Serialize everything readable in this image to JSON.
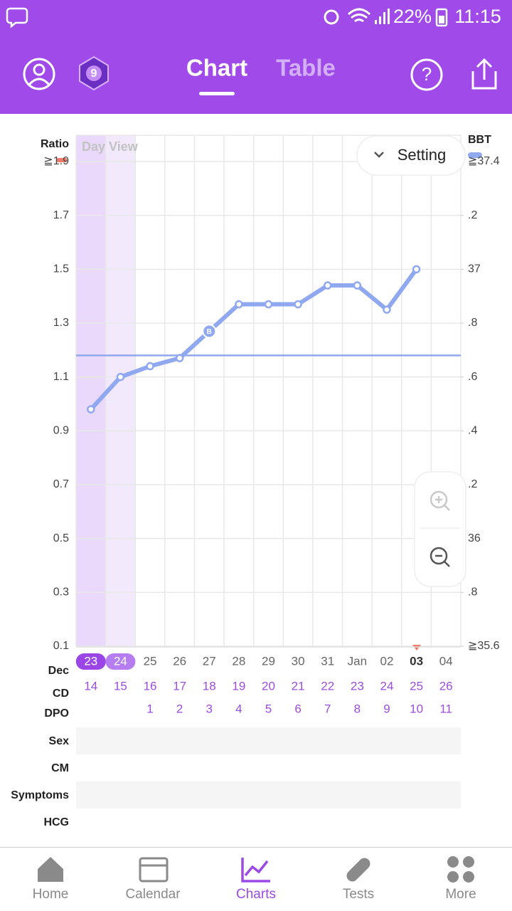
{
  "status_bar": {
    "battery": "22%",
    "time": "11:15"
  },
  "header": {
    "tabs": [
      "Chart",
      "Table"
    ]
  },
  "chart_data": {
    "type": "line",
    "y_label": "Ratio",
    "y2_label": "BBT",
    "view_label": "Day View",
    "setting_label": "Setting",
    "categories": [
      "23",
      "24",
      "25",
      "26",
      "27",
      "28",
      "29",
      "30",
      "31",
      "Jan",
      "02",
      "03",
      "04"
    ],
    "series": [
      {
        "name": "BBT",
        "color": "#8fa8f0",
        "axis": "y2",
        "values": [
          36.48,
          36.6,
          36.64,
          36.67,
          36.77,
          36.87,
          36.87,
          36.87,
          36.94,
          36.94,
          36.85,
          37.0,
          null
        ],
        "marker_labels": [
          null,
          null,
          null,
          null,
          "B",
          null,
          null,
          null,
          null,
          null,
          null,
          null,
          null
        ]
      }
    ],
    "coverline": 36.68,
    "ylim": [
      0.1,
      1.9
    ],
    "yticks": [
      {
        "value": 1.9,
        "label": "≧1.9"
      },
      1.7,
      1.5,
      1.3,
      1.1,
      0.9,
      0.7,
      0.5,
      0.3,
      0.1
    ],
    "y2lim": [
      35.6,
      37.4
    ],
    "y2ticks": [
      {
        "value": 37.4,
        "label": "≧37.4"
      },
      {
        "value": 37.2,
        "label": ".2"
      },
      37,
      {
        "value": 36.8,
        "label": ".8"
      },
      {
        "value": 36.6,
        "label": ".6"
      },
      {
        "value": 36.4,
        "label": ".4"
      },
      {
        "value": 36.2,
        "label": ".2"
      },
      36,
      {
        "value": 35.8,
        "label": ".8"
      },
      {
        "value": 35.6,
        "label": "≧35.6"
      }
    ],
    "grid": true,
    "month_label": "Dec",
    "cd_label": "CD",
    "cd": [
      14,
      15,
      16,
      17,
      18,
      19,
      20,
      21,
      22,
      23,
      24,
      25,
      26
    ],
    "dpo_label": "DPO",
    "dpo": [
      null,
      null,
      1,
      2,
      3,
      4,
      5,
      6,
      7,
      8,
      9,
      10,
      11
    ],
    "rows": [
      "Sex",
      "CM",
      "Symptoms",
      "HCG"
    ]
  },
  "nav": {
    "items": [
      "Home",
      "Calendar",
      "Charts",
      "Tests",
      "More"
    ]
  }
}
